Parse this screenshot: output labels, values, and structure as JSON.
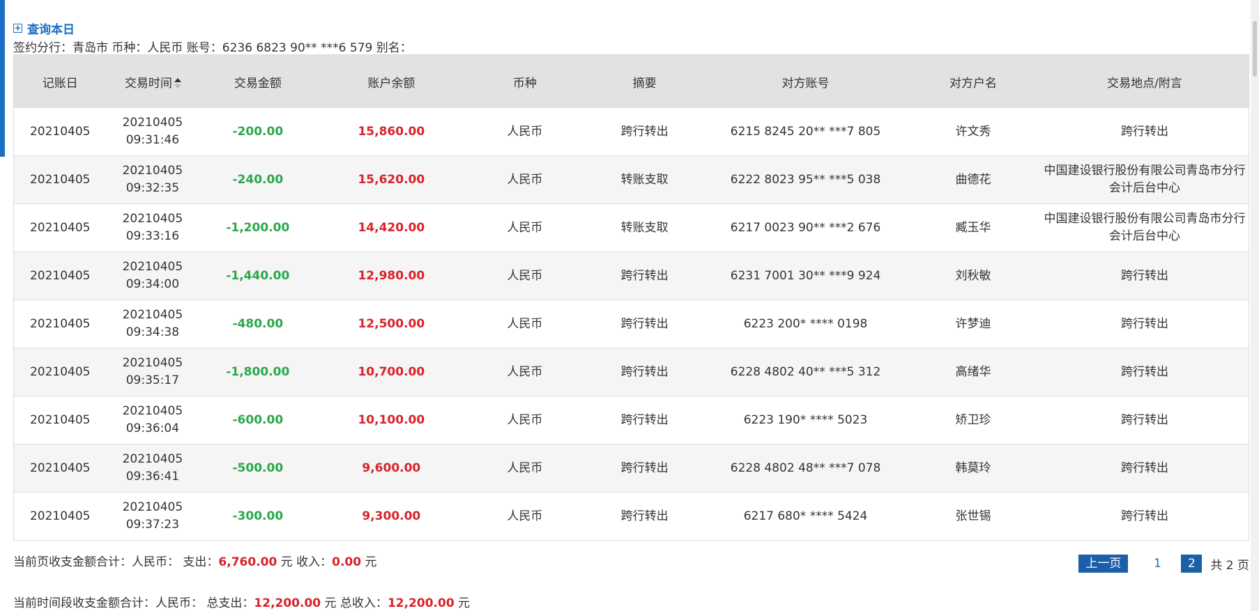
{
  "query_link": {
    "icon": "plus-square-icon",
    "label": "查询本日"
  },
  "info_line": "签约分行：青岛市 币种：人民币 账号：6236 6823 90** ***6 579 别名：",
  "table": {
    "headers": [
      "记账日",
      "交易时间",
      "交易金额",
      "账户余额",
      "币种",
      "摘要",
      "对方账号",
      "对方户名",
      "交易地点/附言"
    ],
    "rows": [
      {
        "date": "20210405",
        "time_d": "20210405",
        "time_t": "09:31:46",
        "amount": "-200.00",
        "balance": "15,860.00",
        "currency": "人民币",
        "summary": "跨行转出",
        "account": "6215 8245 20** ***7 805",
        "name": "许文秀",
        "place": "跨行转出"
      },
      {
        "date": "20210405",
        "time_d": "20210405",
        "time_t": "09:32:35",
        "amount": "-240.00",
        "balance": "15,620.00",
        "currency": "人民币",
        "summary": "转账支取",
        "account": "6222 8023 95** ***5 038",
        "name": "曲德花",
        "place": "中国建设银行股份有限公司青岛市分行会计后台中心"
      },
      {
        "date": "20210405",
        "time_d": "20210405",
        "time_t": "09:33:16",
        "amount": "-1,200.00",
        "balance": "14,420.00",
        "currency": "人民币",
        "summary": "转账支取",
        "account": "6217 0023 90** ***2 676",
        "name": "臧玉华",
        "place": "中国建设银行股份有限公司青岛市分行会计后台中心"
      },
      {
        "date": "20210405",
        "time_d": "20210405",
        "time_t": "09:34:00",
        "amount": "-1,440.00",
        "balance": "12,980.00",
        "currency": "人民币",
        "summary": "跨行转出",
        "account": "6231 7001 30** ***9 924",
        "name": "刘秋敏",
        "place": "跨行转出"
      },
      {
        "date": "20210405",
        "time_d": "20210405",
        "time_t": "09:34:38",
        "amount": "-480.00",
        "balance": "12,500.00",
        "currency": "人民币",
        "summary": "跨行转出",
        "account": "6223 200* **** 0198",
        "name": "许梦迪",
        "place": "跨行转出"
      },
      {
        "date": "20210405",
        "time_d": "20210405",
        "time_t": "09:35:17",
        "amount": "-1,800.00",
        "balance": "10,700.00",
        "currency": "人民币",
        "summary": "跨行转出",
        "account": "6228 4802 40** ***5 312",
        "name": "高绪华",
        "place": "跨行转出"
      },
      {
        "date": "20210405",
        "time_d": "20210405",
        "time_t": "09:36:04",
        "amount": "-600.00",
        "balance": "10,100.00",
        "currency": "人民币",
        "summary": "跨行转出",
        "account": "6223 190* **** 5023",
        "name": "矫卫珍",
        "place": "跨行转出"
      },
      {
        "date": "20210405",
        "time_d": "20210405",
        "time_t": "09:36:41",
        "amount": "-500.00",
        "balance": "9,600.00",
        "currency": "人民币",
        "summary": "跨行转出",
        "account": "6228 4802 48** ***7 078",
        "name": "韩莫玲",
        "place": "跨行转出"
      },
      {
        "date": "20210405",
        "time_d": "20210405",
        "time_t": "09:37:23",
        "amount": "-300.00",
        "balance": "9,300.00",
        "currency": "人民币",
        "summary": "跨行转出",
        "account": "6217 680* **** 5424",
        "name": "张世锡",
        "place": "跨行转出"
      }
    ]
  },
  "summary_page": {
    "prefix": "当前页收支金额合计：人民币：  支出：",
    "expense": "6,760.00",
    "mid": " 元  收入：",
    "income": "0.00",
    "suffix": " 元"
  },
  "summary_period": {
    "prefix": "当前时间段收支金额合计：人民币：  总支出：",
    "expense": "12,200.00",
    "mid": " 元  总收入：",
    "income": "12,200.00",
    "suffix": " 元"
  },
  "pager": {
    "prev": "上一页",
    "page1": "1",
    "current": "2",
    "total": "共 2 页"
  },
  "colors": {
    "accent": "#1a6fc2",
    "negative": "#2ba84a",
    "balance": "#d8232a",
    "header_bg": "#e2e2e2"
  }
}
